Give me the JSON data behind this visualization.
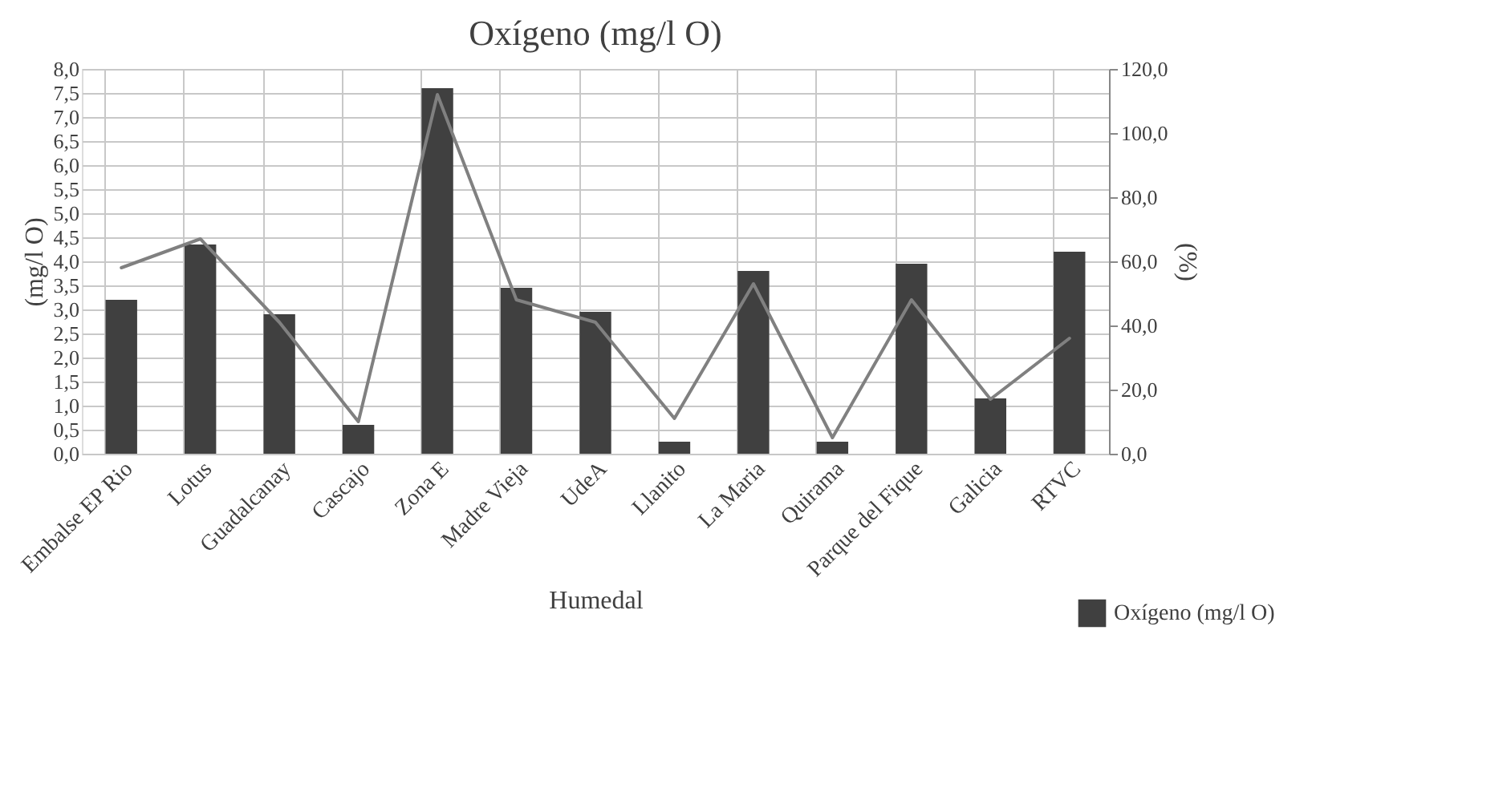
{
  "chart_data": {
    "type": "bar",
    "title": "Oxígeno  (mg/l O)",
    "xlabel": "Humedal",
    "ylabel": "(mg/l O)",
    "y2label": "(%)",
    "categories": [
      "Embalse EP Rio",
      "Lotus",
      "Guadalcanay",
      "Cascajo",
      "Zona E",
      "Madre Vieja",
      "UdeA",
      "Llanito",
      "La Maria",
      "Quirama",
      "Parque del Fique",
      "Galicia",
      "RTVC"
    ],
    "series": [
      {
        "name": "Oxígeno (mg/l O)",
        "color": "#404040",
        "values": [
          3.2,
          4.35,
          2.9,
          0.6,
          7.6,
          3.45,
          2.95,
          0.25,
          3.8,
          0.25,
          3.95,
          1.15,
          4.2
        ]
      },
      {
        "type": "line",
        "axis": "y2",
        "color": "#808080",
        "values": [
          58,
          67,
          41,
          10,
          112,
          48,
          41,
          11,
          53,
          5,
          48,
          17,
          36
        ]
      }
    ],
    "ylim": [
      0,
      8
    ],
    "yticks": [
      {
        "value": 0,
        "label": "0,0"
      },
      {
        "value": 0.5,
        "label": "0,5"
      },
      {
        "value": 1,
        "label": "1,0"
      },
      {
        "value": 1.5,
        "label": "1,5"
      },
      {
        "value": 2,
        "label": "2,0"
      },
      {
        "value": 2.5,
        "label": "2,5"
      },
      {
        "value": 3,
        "label": "3,0"
      },
      {
        "value": 3.5,
        "label": "3,5"
      },
      {
        "value": 4,
        "label": "4,0"
      },
      {
        "value": 4.5,
        "label": "4,5"
      },
      {
        "value": 5,
        "label": "5,0"
      },
      {
        "value": 5.5,
        "label": "5,5"
      },
      {
        "value": 6,
        "label": "6,0"
      },
      {
        "value": 6.5,
        "label": "6,5"
      },
      {
        "value": 7,
        "label": "7,0"
      },
      {
        "value": 7.5,
        "label": "7,5"
      },
      {
        "value": 8,
        "label": "8,0"
      }
    ],
    "y2lim": [
      0,
      120
    ],
    "y2ticks": [
      {
        "value": 0,
        "label": "0,0"
      },
      {
        "value": 20,
        "label": "20,0"
      },
      {
        "value": 40,
        "label": "40,0"
      },
      {
        "value": 60,
        "label": "60,0"
      },
      {
        "value": 80,
        "label": "80,0"
      },
      {
        "value": 100,
        "label": "100,0"
      },
      {
        "value": 120,
        "label": "120,0"
      }
    ],
    "grid": true,
    "legend": "bottom right"
  }
}
